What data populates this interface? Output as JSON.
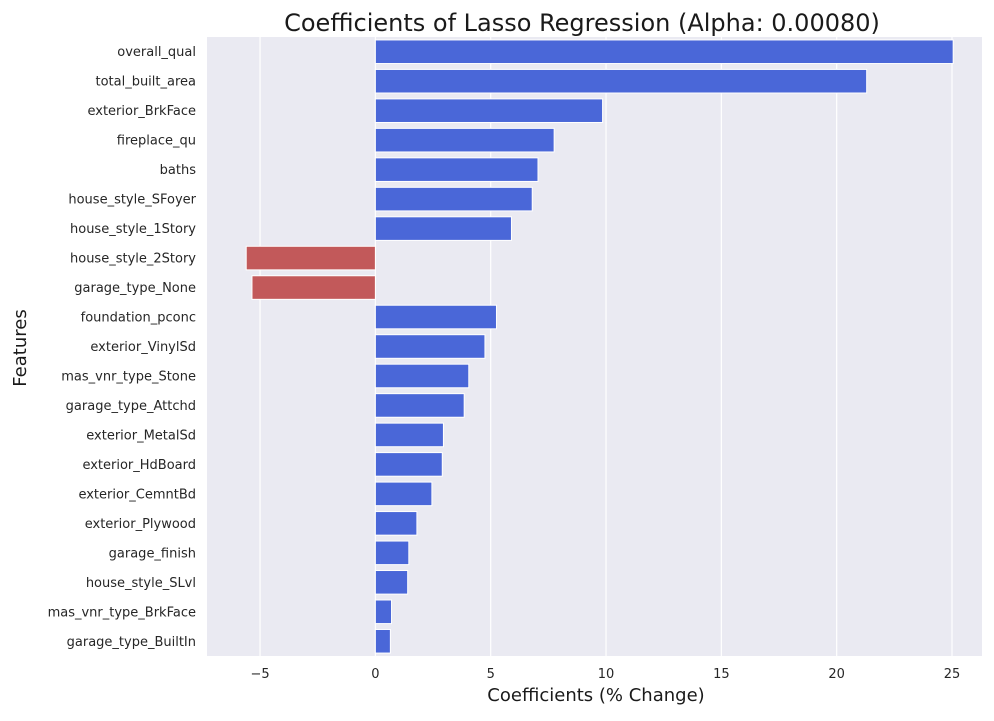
{
  "chart_data": {
    "type": "bar",
    "orientation": "horizontal",
    "title": "Coefficients of Lasso Regression (Alpha: 0.00080)",
    "xlabel": "Coefficients (% Change)",
    "ylabel": "Features",
    "xlim": [
      -7.3,
      26.3
    ],
    "xticks": [
      -5,
      0,
      5,
      10,
      15,
      20,
      25
    ],
    "xtick_labels": [
      "−5",
      "0",
      "5",
      "10",
      "15",
      "20",
      "25"
    ],
    "grid": true,
    "legend": "none",
    "colors": {
      "positive": "#4a67d8",
      "negative": "#c2595a",
      "background": "#eaeaf2",
      "grid": "#ffffff"
    },
    "categories": [
      "overall_qual",
      "total_built_area",
      "exterior_BrkFace",
      "fireplace_qu",
      "baths",
      "house_style_SFoyer",
      "house_style_1Story",
      "house_style_2Story",
      "garage_type_None",
      "foundation_pconc",
      "exterior_VinylSd",
      "mas_vnr_type_Stone",
      "garage_type_Attchd",
      "exterior_MetalSd",
      "exterior_HdBoard",
      "exterior_CemntBd",
      "exterior_Plywood",
      "garage_finish",
      "house_style_SLvl",
      "mas_vnr_type_BrkFace",
      "garage_type_BuiltIn"
    ],
    "values": [
      25.05,
      21.3,
      9.85,
      7.75,
      7.05,
      6.8,
      5.9,
      -5.6,
      -5.35,
      5.25,
      4.75,
      4.05,
      3.85,
      2.95,
      2.9,
      2.45,
      1.8,
      1.45,
      1.4,
      0.7,
      0.65
    ]
  }
}
